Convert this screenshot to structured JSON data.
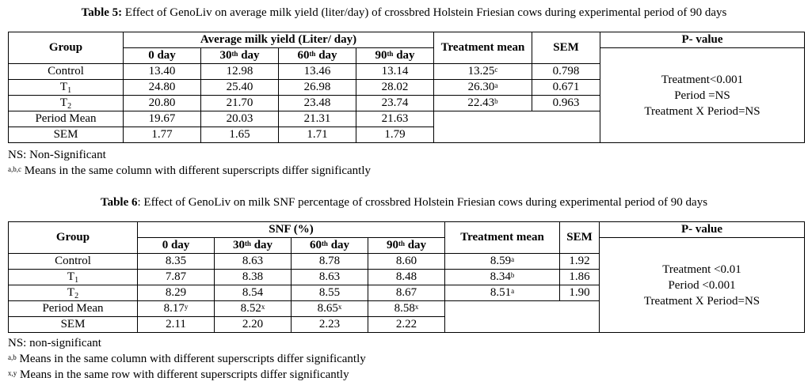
{
  "table5": {
    "caption_label": "Table 5:",
    "caption_text": " Effect of GenoLiv on average milk yield (liter/day) of crossbred Holstein Friesian cows during experimental period of 90 days",
    "group_header": "Group",
    "span_header": "Average milk yield (Liter/ day)",
    "periods": [
      {
        "num": "0",
        "sup": "",
        "unit": " day"
      },
      {
        "num": "30",
        "sup": "th",
        "unit": " day"
      },
      {
        "num": "60",
        "sup": "th",
        "unit": " day"
      },
      {
        "num": "90",
        "sup": "th",
        "unit": " day"
      }
    ],
    "treatment_mean_header": "Treatment mean",
    "sem_header": "SEM",
    "pvalue_header": "P- value",
    "rows": [
      {
        "group": "Control",
        "sub": "",
        "values": [
          "13.40",
          "12.98",
          "13.46",
          "13.14"
        ],
        "mean": "13.25",
        "mean_sup": "c",
        "sem": "0.798"
      },
      {
        "group": "T",
        "sub": "1",
        "values": [
          "24.80",
          "25.40",
          "26.98",
          "28.02"
        ],
        "mean": "26.30",
        "mean_sup": "a",
        "sem": "0.671"
      },
      {
        "group": "T",
        "sub": "2",
        "values": [
          "20.80",
          "21.70",
          "23.48",
          "23.74"
        ],
        "mean": "22.43",
        "mean_sup": "b",
        "sem": "0.963"
      }
    ],
    "period_mean": {
      "label": "Period Mean",
      "values": [
        "19.67",
        "20.03",
        "21.31",
        "21.63"
      ],
      "sups": [
        "",
        "",
        "",
        ""
      ]
    },
    "sem_row": {
      "label": "SEM",
      "values": [
        "1.77",
        "1.65",
        "1.71",
        "1.79"
      ]
    },
    "pvalues": [
      "Treatment<0.001",
      "Period =NS",
      "Treatment X Period=NS"
    ],
    "notes": [
      {
        "sup": "",
        "text": "NS: Non-Significant"
      },
      {
        "sup": "a,b,c",
        "text": " Means in the same column with different superscripts differ significantly"
      }
    ]
  },
  "table6": {
    "caption_label": "Table 6",
    "caption_text": ": Effect of GenoLiv on milk SNF percentage of crossbred Holstein Friesian cows during experimental period of 90 days",
    "group_header": "Group",
    "span_header": "SNF (%)",
    "periods": [
      {
        "num": "0",
        "sup": "",
        "unit": " day"
      },
      {
        "num": "30",
        "sup": "th",
        "unit": " day"
      },
      {
        "num": "60",
        "sup": "th",
        "unit": " day"
      },
      {
        "num": "90",
        "sup": "th",
        "unit": " day"
      }
    ],
    "treatment_mean_header": "Treatment mean",
    "sem_header": "SEM",
    "pvalue_header": "P- value",
    "rows": [
      {
        "group": "Control",
        "sub": "",
        "values": [
          "8.35",
          "8.63",
          "8.78",
          "8.60"
        ],
        "mean": "8.59",
        "mean_sup": "a",
        "sem": "1.92"
      },
      {
        "group": "T",
        "sub": "1",
        "values": [
          "7.87",
          "8.38",
          "8.63",
          "8.48"
        ],
        "mean": "8.34",
        "mean_sup": "b",
        "sem": "1.86"
      },
      {
        "group": "T",
        "sub": "2",
        "values": [
          "8.29",
          "8.54",
          "8.55",
          "8.67"
        ],
        "mean": "8.51",
        "mean_sup": "a",
        "sem": "1.90"
      }
    ],
    "period_mean": {
      "label": "Period Mean",
      "values": [
        "8.17",
        "8.52",
        "8.65",
        "8.58"
      ],
      "sups": [
        "y",
        "x",
        "x",
        "x"
      ]
    },
    "sem_row": {
      "label": "SEM",
      "values": [
        "2.11",
        "2.20",
        "2.23",
        "2.22"
      ]
    },
    "pvalues": [
      "Treatment <0.01",
      "Period <0.001",
      "Treatment X Period=NS"
    ],
    "notes": [
      {
        "sup": "",
        "text": "NS: non-significant"
      },
      {
        "sup": "a,b",
        "text": " Means in the same column with different superscripts differ significantly"
      },
      {
        "sup": "x,y",
        "text": " Means in the same row with different superscripts differ significantly"
      }
    ]
  }
}
